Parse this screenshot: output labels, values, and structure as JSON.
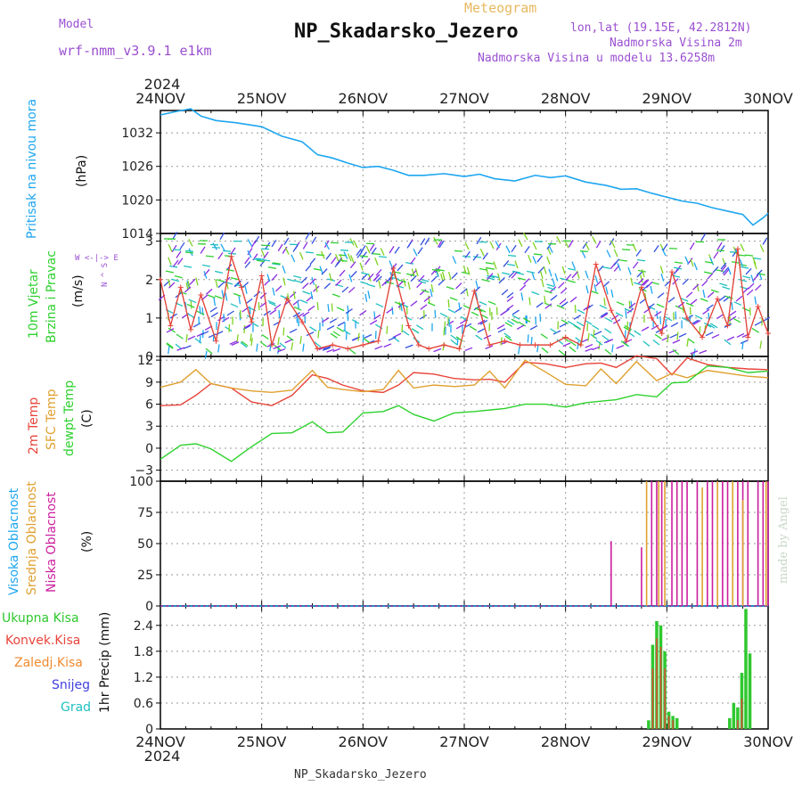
{
  "header": {
    "model_label": "Model",
    "model_name": "wrf-nmm_v3.9.1 e1km",
    "meteogram_label": "Meteogram",
    "station": "NP_Skadarsko_Jezero",
    "lonlat": "lon,lat (19.15E, 42.2812N)",
    "elev": "Nadmorska Visina 2m",
    "elev_model": "Nadmorska Visina u modelu 13.6258m",
    "footer_station": "NP_Skadarsko_Jezero",
    "watermark": "made by Angel"
  },
  "colors": {
    "pressure": "#1ea6f0",
    "temp2m": "#e8443a",
    "sfc": "#e0a030",
    "dew": "#2ed12e",
    "wind_speed": "#e8443a",
    "high_cloud": "#1ea6f0",
    "mid_cloud": "#e0a030",
    "low_cloud": "#cc1e9e",
    "precip_total": "#2ec82e",
    "precip_conv": "#e8443a",
    "precip_frz": "#f08a30",
    "snow": "#4040e0",
    "hail": "#20c0c0"
  },
  "chart_data": [
    {
      "type": "line",
      "panel": "pressure",
      "ylabel_name": "Pritisak na nivou mora",
      "ylabel_unit": "(hPa)",
      "x_ticks": [
        "24NOV",
        "25NOV",
        "26NOV",
        "27NOV",
        "28NOV",
        "29NOV",
        "30NOV"
      ],
      "x_year": "2024",
      "ylim": [
        1014,
        1036
      ],
      "y_ticks": [
        1014,
        1020,
        1026,
        1032
      ],
      "x_days": [
        0,
        0.15,
        0.3,
        0.4,
        0.55,
        0.75,
        1.0,
        1.2,
        1.4,
        1.55,
        1.7,
        1.85,
        2.0,
        2.15,
        2.3,
        2.45,
        2.6,
        2.8,
        3.0,
        3.15,
        3.3,
        3.5,
        3.7,
        3.85,
        4.0,
        4.2,
        4.4,
        4.55,
        4.7,
        4.85,
        5.0,
        5.15,
        5.3,
        5.45,
        5.6,
        5.75,
        5.85,
        5.95,
        6.0
      ],
      "values": [
        1035.2,
        1035.8,
        1036.3,
        1035.0,
        1034.2,
        1033.8,
        1033.1,
        1031.4,
        1030.4,
        1028.1,
        1027.5,
        1026.6,
        1025.8,
        1026.0,
        1025.3,
        1024.4,
        1024.4,
        1024.7,
        1024.2,
        1024.6,
        1023.8,
        1023.4,
        1024.4,
        1024.0,
        1024.3,
        1023.2,
        1022.6,
        1021.9,
        1022.0,
        1021.2,
        1020.5,
        1019.8,
        1019.4,
        1018.6,
        1018.0,
        1017.4,
        1015.5,
        1016.8,
        1017.6
      ],
      "grid": true
    },
    {
      "type": "line",
      "panel": "wind",
      "ylabel_name": "10m Vjetar",
      "ylabel_name2": "Brzina i Pravac",
      "ylabel_unit": "(m/s)",
      "compass": "W <-|-> E",
      "compass_ns": "N ^ S",
      "ylim": [
        0,
        3.2
      ],
      "y_ticks": [
        0,
        1,
        2,
        3
      ],
      "x_days": [
        0,
        0.1,
        0.2,
        0.3,
        0.4,
        0.55,
        0.7,
        0.8,
        0.9,
        1.0,
        1.1,
        1.25,
        1.4,
        1.55,
        1.7,
        1.85,
        2.0,
        2.15,
        2.3,
        2.45,
        2.55,
        2.65,
        2.8,
        2.95,
        3.1,
        3.25,
        3.4,
        3.55,
        3.7,
        3.85,
        4.0,
        4.15,
        4.3,
        4.45,
        4.6,
        4.75,
        4.85,
        4.95,
        5.05,
        5.2,
        5.35,
        5.5,
        5.6,
        5.7,
        5.8,
        5.9,
        6.0
      ],
      "values": [
        2.0,
        0.8,
        1.8,
        0.7,
        1.6,
        0.4,
        2.6,
        1.8,
        0.9,
        2.1,
        0.3,
        1.5,
        0.9,
        0.2,
        0.3,
        0.2,
        0.3,
        0.4,
        2.3,
        0.8,
        0.3,
        0.2,
        0.3,
        0.2,
        1.7,
        0.3,
        0.4,
        0.3,
        0.3,
        0.3,
        0.5,
        0.3,
        2.4,
        1.2,
        0.4,
        1.8,
        1.0,
        0.6,
        2.2,
        1.0,
        0.5,
        1.5,
        0.8,
        2.8,
        0.5,
        1.3,
        0.6
      ],
      "grid": true
    },
    {
      "type": "line",
      "panel": "temperature",
      "ylabel_name": "2m Temp",
      "ylabel_name2": "SFC Temp",
      "ylabel_name3": "dewpt Temp",
      "ylabel_unit": "(C)",
      "ylim": [
        -4.5,
        12.5
      ],
      "y_ticks": [
        -3,
        0,
        3,
        6,
        9,
        12
      ],
      "x_days": [
        0,
        0.2,
        0.35,
        0.5,
        0.7,
        0.9,
        1.1,
        1.3,
        1.5,
        1.65,
        1.8,
        2.0,
        2.2,
        2.35,
        2.5,
        2.7,
        2.9,
        3.1,
        3.25,
        3.4,
        3.6,
        3.8,
        4.0,
        4.2,
        4.35,
        4.5,
        4.7,
        4.9,
        5.05,
        5.2,
        5.4,
        5.6,
        5.8,
        6.0
      ],
      "series": [
        {
          "name": "2m Temp",
          "values": [
            5.8,
            5.9,
            7.2,
            8.8,
            8.2,
            6.3,
            5.8,
            7.2,
            10.0,
            9.5,
            8.6,
            7.8,
            7.6,
            8.6,
            10.3,
            10.1,
            9.5,
            9.3,
            9.4,
            9.0,
            11.7,
            11.5,
            11.0,
            11.5,
            11.6,
            11.0,
            12.6,
            12.2,
            10.0,
            12.3,
            11.4,
            11.0,
            10.8,
            10.7
          ]
        },
        {
          "name": "SFC Temp",
          "values": [
            8.3,
            9.0,
            10.7,
            8.8,
            8.2,
            7.8,
            7.6,
            7.9,
            10.6,
            8.3,
            8.0,
            7.7,
            8.0,
            10.6,
            8.2,
            8.6,
            8.4,
            8.6,
            10.5,
            8.2,
            12.0,
            10.4,
            8.7,
            8.5,
            10.8,
            8.8,
            11.8,
            9.2,
            10.2,
            9.6,
            10.6,
            10.2,
            9.8,
            9.6
          ]
        },
        {
          "name": "dewpt Temp",
          "values": [
            -1.5,
            0.4,
            0.6,
            -0.1,
            -1.8,
            0.2,
            2.0,
            2.1,
            3.6,
            2.1,
            2.2,
            4.8,
            5.0,
            5.8,
            4.6,
            3.7,
            4.8,
            5.0,
            5.2,
            5.4,
            6.0,
            6.0,
            5.6,
            6.2,
            6.4,
            6.6,
            7.3,
            7.0,
            8.9,
            9.0,
            11.2,
            11.0,
            10.3,
            10.5
          ]
        }
      ],
      "grid": true
    },
    {
      "type": "bar",
      "panel": "cloud",
      "ylabel_name": "Visoka Oblacnost",
      "ylabel_name2": "Srednja Oblacnost",
      "ylabel_name3": "Niska Oblacnost",
      "ylabel_unit": "(%)",
      "ylim": [
        0,
        100
      ],
      "y_ticks": [
        0,
        25,
        50,
        75,
        100
      ],
      "series": [
        {
          "name": "Niska Oblacnost",
          "x_days": [
            4.45,
            4.75,
            4.85,
            4.9,
            4.95,
            5.05,
            5.1,
            5.15,
            5.2,
            5.3,
            5.4,
            5.45,
            5.55,
            5.6,
            5.7,
            5.75,
            5.8,
            5.9,
            5.95,
            6.0
          ],
          "values": [
            52,
            47,
            100,
            100,
            100,
            100,
            100,
            100,
            100,
            100,
            100,
            100,
            100,
            100,
            100,
            100,
            100,
            100,
            100,
            100
          ]
        },
        {
          "name": "Srednja Oblacnost",
          "x_days": [
            4.8,
            4.92,
            4.98,
            5.35,
            5.5,
            5.65,
            5.75,
            5.98
          ],
          "values": [
            100,
            100,
            100,
            95,
            100,
            100,
            85,
            100
          ]
        },
        {
          "name": "Visoka Oblacnost",
          "x_days": [],
          "values": []
        }
      ],
      "grid": true
    },
    {
      "type": "bar",
      "panel": "precip",
      "ylabel_name": "1hr Precip (mm)",
      "legend": [
        "Ukupna Kisa",
        "Konvek.Kisa",
        "Zaledj.Kisa",
        "Snijeg",
        "Grad"
      ],
      "ylim": [
        0,
        2.85
      ],
      "y_ticks": [
        0,
        0.6,
        1.2,
        1.8,
        2.4
      ],
      "series": [
        {
          "name": "Ukupna Kisa",
          "x_days": [
            4.82,
            4.86,
            4.9,
            4.94,
            4.98,
            5.02,
            5.06,
            5.1,
            5.62,
            5.66,
            5.7,
            5.74,
            5.78,
            5.82
          ],
          "values": [
            0.2,
            1.95,
            2.5,
            2.4,
            1.8,
            0.4,
            0.3,
            0.25,
            0.25,
            0.6,
            0.5,
            1.3,
            2.78,
            1.75
          ]
        },
        {
          "name": "Konvek.Kisa",
          "x_days": [
            4.86,
            4.9,
            4.94,
            4.98,
            5.02,
            5.06,
            5.7,
            5.74
          ],
          "values": [
            1.4,
            2.1,
            1.9,
            1.4,
            0.3,
            0.2,
            0.2,
            0.7
          ]
        }
      ],
      "grid": true
    }
  ]
}
